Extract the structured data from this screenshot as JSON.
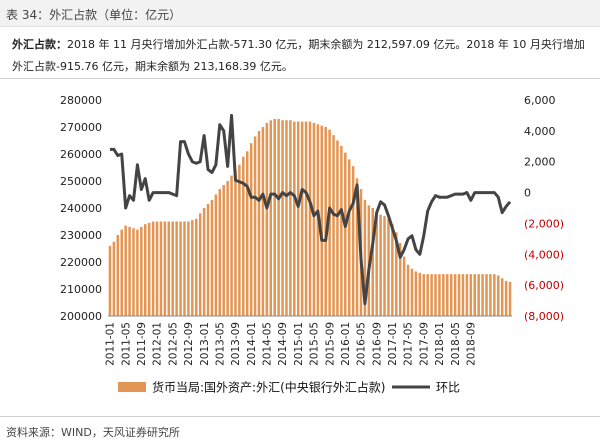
{
  "header": {
    "caption": "表 34：外汇占款（单位：亿元）"
  },
  "summary": {
    "lead": "外汇占款：",
    "text": "2018 年 11 月央行增加外汇占款-571.30 亿元，期末余额为 212,597.09 亿元。2018 年 10 月央行增加外汇占款-915.76 亿元，期末余额为 213,168.39 亿元。"
  },
  "footer": {
    "source": "资料来源：WIND，天风证券研究所"
  },
  "colors": {
    "bar": "#e39553",
    "line": "#444444",
    "negative_label": "#c00000"
  },
  "chart_data": {
    "type": "bar",
    "x_tick_labels": [
      "2011-01",
      "2011-05",
      "2011-09",
      "2012-01",
      "2012-05",
      "2012-09",
      "2013-01",
      "2013-05",
      "2013-09",
      "2014-01",
      "2014-05",
      "2014-09",
      "2015-01",
      "2015-05",
      "2015-09",
      "2016-01",
      "2016-05",
      "2016-09",
      "2017-01",
      "2017-05",
      "2017-09",
      "2018-01",
      "2018-05",
      "2018-09"
    ],
    "left_axis": {
      "min": 200000,
      "max": 280000,
      "ticks": [
        "280000",
        "270000",
        "260000",
        "250000",
        "240000",
        "230000",
        "220000",
        "210000",
        "200000"
      ]
    },
    "right_axis": {
      "min": -8000,
      "max": 6000,
      "ticks": [
        "6,000",
        "4,000",
        "2,000",
        "0",
        "(2,000)",
        "(4,000)",
        "(6,000)",
        "(8,000)"
      ]
    },
    "series": [
      {
        "name": "货币当局:国外资产:外汇(中央银行外汇占款)",
        "type": "bar",
        "axis": "left",
        "values": [
          226000,
          227500,
          230000,
          232000,
          233500,
          233000,
          232500,
          232000,
          233000,
          234000,
          234500,
          235000,
          235000,
          235000,
          235000,
          235000,
          235000,
          235000,
          235000,
          235000,
          235000,
          235500,
          236000,
          238000,
          240000,
          241500,
          243000,
          245000,
          247000,
          248500,
          250000,
          252000,
          254000,
          256000,
          259000,
          261000,
          264000,
          266500,
          268500,
          270000,
          271500,
          272500,
          273000,
          273000,
          272500,
          272500,
          272500,
          272000,
          272000,
          272000,
          272000,
          272000,
          271500,
          271000,
          270500,
          270000,
          269000,
          267000,
          265000,
          263000,
          260500,
          258000,
          255500,
          251000,
          247000,
          243000,
          241000,
          240000,
          238500,
          237500,
          237000,
          236000,
          234000,
          231000,
          227000,
          222000,
          219000,
          217500,
          216500,
          216000,
          215500,
          215500,
          215500,
          215500,
          215500,
          215500,
          215500,
          215500,
          215500,
          215500,
          215500,
          215500,
          215500,
          215500,
          215500,
          215500,
          215500,
          215500,
          215500,
          215000,
          214000,
          213000,
          212600
        ]
      },
      {
        "name": "环比",
        "type": "line",
        "axis": "right",
        "values": [
          2800,
          2800,
          2400,
          2500,
          -1000,
          -200,
          -500,
          1800,
          200,
          900,
          -500,
          0,
          0,
          0,
          0,
          0,
          -100,
          -200,
          3300,
          3300,
          2500,
          2000,
          1900,
          2000,
          3700,
          1500,
          1300,
          1800,
          4400,
          4000,
          1700,
          5000,
          800,
          700,
          600,
          400,
          -300,
          -300,
          -500,
          -100,
          -1000,
          -100,
          -100,
          -400,
          0,
          -200,
          0,
          -200,
          -900,
          200,
          0,
          -600,
          -1500,
          -1200,
          -3100,
          -3100,
          -1000,
          -1400,
          -1500,
          -1100,
          -2200,
          -1200,
          -700,
          500,
          -4300,
          -7200,
          -5000,
          -3300,
          -1300,
          -600,
          -800,
          -1500,
          -2300,
          -3100,
          -4200,
          -3700,
          -3000,
          -2800,
          -3700,
          -4000,
          -2800,
          -1200,
          -600,
          -200,
          -300,
          -300,
          -300,
          -200,
          -100,
          -100,
          -100,
          0,
          -500,
          0,
          0,
          0,
          0,
          0,
          0,
          -300,
          -1300,
          -900,
          -600
        ]
      }
    ],
    "legend": [
      "货币当局:国外资产:外汇(中央银行外汇占款)",
      "环比"
    ],
    "legend_position": "bottom",
    "title": "",
    "xlabel": "",
    "ylabel": ""
  }
}
